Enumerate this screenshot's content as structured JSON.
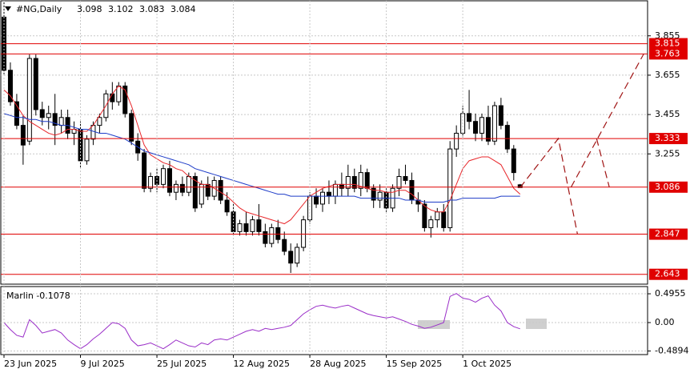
{
  "chart_data": [
    {
      "type": "candlestick",
      "title": "#NG,Daily",
      "categories": [
        "23 Jun 2025",
        null,
        null,
        null,
        null,
        null,
        null,
        null,
        null,
        null,
        null,
        null,
        "9 Jul 2025",
        null,
        null,
        null,
        null,
        null,
        null,
        null,
        null,
        null,
        null,
        null,
        "25 Jul 2025",
        null,
        null,
        null,
        null,
        null,
        null,
        null,
        null,
        null,
        null,
        null,
        "12 Aug 2025",
        null,
        null,
        null,
        null,
        null,
        null,
        null,
        null,
        null,
        null,
        null,
        "28 Aug 2025",
        null,
        null,
        null,
        null,
        null,
        null,
        null,
        null,
        null,
        null,
        null,
        "15 Sep 2025",
        null,
        null,
        null,
        null,
        null,
        null,
        null,
        null,
        null,
        null,
        null,
        "1 Oct 2025",
        null,
        null,
        null,
        null,
        null,
        null,
        null,
        null,
        null
      ],
      "open": [
        3.95,
        3.68,
        3.52,
        3.4,
        3.32,
        3.74,
        3.48,
        3.44,
        3.46,
        3.4,
        3.44,
        3.36,
        3.38,
        3.22,
        3.33,
        3.4,
        3.44,
        3.56,
        3.52,
        3.6,
        3.46,
        3.32,
        3.26,
        3.08,
        3.14,
        3.1,
        3.18,
        3.06,
        3.1,
        3.06,
        3.14,
        3.0,
        3.1,
        3.04,
        3.12,
        3.02,
        2.96,
        2.86,
        2.9,
        2.86,
        2.92,
        2.86,
        2.8,
        2.88,
        2.82,
        2.76,
        2.7,
        2.78,
        2.92,
        3.04,
        3.0,
        3.06,
        3.04,
        3.1,
        3.08,
        3.14,
        3.08,
        3.16,
        3.08,
        3.02,
        3.06,
        2.98,
        3.08,
        3.14,
        3.12,
        3.02,
        3.0,
        2.88,
        2.92,
        2.96,
        2.88,
        3.28,
        3.36,
        3.46,
        3.42,
        3.36,
        3.44,
        3.32,
        3.5,
        3.4,
        3.28,
        3.098
      ],
      "high": [
        4.03,
        3.72,
        3.56,
        3.45,
        3.76,
        3.76,
        3.52,
        3.5,
        3.56,
        3.48,
        3.48,
        3.42,
        3.42,
        3.35,
        3.42,
        3.46,
        3.58,
        3.62,
        3.62,
        3.62,
        3.48,
        3.36,
        3.28,
        3.16,
        3.18,
        3.2,
        3.22,
        3.12,
        3.14,
        3.16,
        3.16,
        3.12,
        3.14,
        3.14,
        3.14,
        3.06,
        3.0,
        2.92,
        2.96,
        2.94,
        3.0,
        2.9,
        2.9,
        2.92,
        2.86,
        2.8,
        2.8,
        2.94,
        3.06,
        3.08,
        3.08,
        3.12,
        3.12,
        3.16,
        3.2,
        3.18,
        3.2,
        3.18,
        3.1,
        3.1,
        3.08,
        3.1,
        3.18,
        3.2,
        3.16,
        3.06,
        3.02,
        2.94,
        2.98,
        3.0,
        3.32,
        3.4,
        3.5,
        3.58,
        3.46,
        3.46,
        3.5,
        3.52,
        3.54,
        3.42,
        3.3,
        3.102
      ],
      "low": [
        3.66,
        3.5,
        3.38,
        3.2,
        3.3,
        3.45,
        3.4,
        3.38,
        3.3,
        3.36,
        3.33,
        3.3,
        3.18,
        3.2,
        3.3,
        3.36,
        3.42,
        3.48,
        3.5,
        3.44,
        3.3,
        3.22,
        3.06,
        3.06,
        3.06,
        3.08,
        3.04,
        3.02,
        3.04,
        3.04,
        2.96,
        2.98,
        3.02,
        3.02,
        3.0,
        2.94,
        2.84,
        2.84,
        2.84,
        2.84,
        2.84,
        2.78,
        2.78,
        2.8,
        2.74,
        2.65,
        2.68,
        2.76,
        2.9,
        2.98,
        2.96,
        3.0,
        3.0,
        3.04,
        3.04,
        3.06,
        3.04,
        3.06,
        2.98,
        2.98,
        2.96,
        2.96,
        3.04,
        3.1,
        3.0,
        2.96,
        2.86,
        2.83,
        2.88,
        2.86,
        2.86,
        3.24,
        3.34,
        3.38,
        3.32,
        3.32,
        3.3,
        3.3,
        3.38,
        3.26,
        3.12,
        3.083
      ],
      "close": [
        3.68,
        3.52,
        3.4,
        3.3,
        3.74,
        3.48,
        3.44,
        3.46,
        3.4,
        3.44,
        3.36,
        3.38,
        3.22,
        3.33,
        3.4,
        3.44,
        3.56,
        3.52,
        3.6,
        3.46,
        3.32,
        3.26,
        3.08,
        3.14,
        3.1,
        3.18,
        3.06,
        3.1,
        3.06,
        3.14,
        2.98,
        3.1,
        3.04,
        3.12,
        3.02,
        2.96,
        2.86,
        2.9,
        2.86,
        2.92,
        2.86,
        2.8,
        2.88,
        2.82,
        2.76,
        2.7,
        2.78,
        2.92,
        3.04,
        3.0,
        3.06,
        3.04,
        3.1,
        3.08,
        3.14,
        3.08,
        3.16,
        3.08,
        3.02,
        3.06,
        2.98,
        3.08,
        3.14,
        3.12,
        3.02,
        3.0,
        2.88,
        2.92,
        2.96,
        2.88,
        3.28,
        3.36,
        3.46,
        3.42,
        3.36,
        3.44,
        3.32,
        3.5,
        3.4,
        3.28,
        3.16,
        3.084
      ],
      "up_color": "#ffffff",
      "down_color": "#000000",
      "series": [
        {
          "color": "#e8262a",
          "values": [
            3.58,
            3.55,
            3.5,
            3.45,
            3.42,
            3.4,
            3.38,
            3.36,
            3.35,
            3.36,
            3.38,
            3.38,
            3.37,
            3.37,
            3.4,
            3.45,
            3.5,
            3.56,
            3.6,
            3.58,
            3.5,
            3.4,
            3.3,
            3.25,
            3.23,
            3.21,
            3.2,
            3.18,
            3.17,
            3.14,
            3.12,
            3.1,
            3.1,
            3.08,
            3.06,
            3.04,
            3.01,
            2.98,
            2.96,
            2.95,
            2.94,
            2.93,
            2.92,
            2.91,
            2.9,
            2.92,
            2.96,
            3.0,
            3.04,
            3.06,
            3.08,
            3.09,
            3.1,
            3.1,
            3.1,
            3.1,
            3.09,
            3.08,
            3.07,
            3.07,
            3.06,
            3.06,
            3.07,
            3.07,
            3.05,
            3.02,
            2.99,
            2.97,
            2.96,
            2.96,
            3.02,
            3.1,
            3.18,
            3.22,
            3.23,
            3.24,
            3.24,
            3.22,
            3.2,
            3.14,
            3.08,
            3.05
          ]
        },
        {
          "color": "#1e3cc8",
          "values": [
            3.46,
            3.45,
            3.44,
            3.44,
            3.43,
            3.43,
            3.42,
            3.42,
            3.41,
            3.4,
            3.4,
            3.39,
            3.38,
            3.38,
            3.37,
            3.36,
            3.36,
            3.35,
            3.34,
            3.33,
            3.31,
            3.29,
            3.27,
            3.26,
            3.25,
            3.24,
            3.23,
            3.22,
            3.21,
            3.2,
            3.18,
            3.17,
            3.16,
            3.15,
            3.14,
            3.13,
            3.12,
            3.11,
            3.1,
            3.09,
            3.08,
            3.07,
            3.06,
            3.05,
            3.05,
            3.04,
            3.04,
            3.04,
            3.04,
            3.04,
            3.04,
            3.04,
            3.04,
            3.04,
            3.04,
            3.04,
            3.03,
            3.03,
            3.03,
            3.03,
            3.03,
            3.03,
            3.03,
            3.02,
            3.02,
            3.02,
            3.01,
            3.01,
            3.01,
            3.01,
            3.02,
            3.02,
            3.03,
            3.03,
            3.03,
            3.03,
            3.03,
            3.03,
            3.04,
            3.04,
            3.04,
            3.04
          ]
        }
      ],
      "levels": [
        3.815,
        3.763,
        3.333,
        3.086,
        2.847,
        2.643
      ],
      "level_color": "#e00000",
      "forecast": [
        {
          "x": [
            81,
            87,
            90
          ],
          "values": [
            3.084,
            3.333,
            2.847
          ]
        },
        {
          "x": [
            89,
            100.4
          ],
          "values": [
            3.086,
            3.763
          ]
        },
        {
          "x": [
            93,
            95
          ],
          "values": [
            3.333,
            3.086
          ]
        }
      ],
      "forecast_color": "#a01414",
      "ylim": [
        2.593,
        4.033
      ],
      "yticks": [
        3.855,
        3.655,
        3.455,
        3.255
      ],
      "grid": true
    },
    {
      "type": "line",
      "title": "Marlin -0.1078",
      "series": [
        {
          "color": "#9a2ec8",
          "values": [
            0.0,
            -0.12,
            -0.22,
            -0.25,
            0.05,
            -0.05,
            -0.18,
            -0.15,
            -0.12,
            -0.18,
            -0.3,
            -0.38,
            -0.45,
            -0.38,
            -0.28,
            -0.2,
            -0.1,
            0.0,
            -0.02,
            -0.1,
            -0.3,
            -0.4,
            -0.38,
            -0.35,
            -0.4,
            -0.45,
            -0.38,
            -0.3,
            -0.35,
            -0.4,
            -0.42,
            -0.35,
            -0.38,
            -0.3,
            -0.28,
            -0.3,
            -0.25,
            -0.2,
            -0.15,
            -0.12,
            -0.15,
            -0.1,
            -0.12,
            -0.1,
            -0.08,
            -0.05,
            0.05,
            0.15,
            0.22,
            0.28,
            0.3,
            0.27,
            0.25,
            0.28,
            0.3,
            0.25,
            0.2,
            0.15,
            0.12,
            0.1,
            0.08,
            0.1,
            0.06,
            0.02,
            -0.03,
            -0.06,
            -0.1,
            -0.08,
            -0.04,
            0.0,
            0.45,
            0.5,
            0.42,
            0.4,
            0.35,
            0.42,
            0.46,
            0.3,
            0.2,
            0.0,
            -0.07,
            -0.1078
          ]
        }
      ],
      "ylim": [
        -0.551,
        0.62
      ],
      "yticks": [
        0.4955,
        {
          "value": 0,
          "label": "0.00"
        },
        -0.4894
      ],
      "grid": true
    }
  ]
}
